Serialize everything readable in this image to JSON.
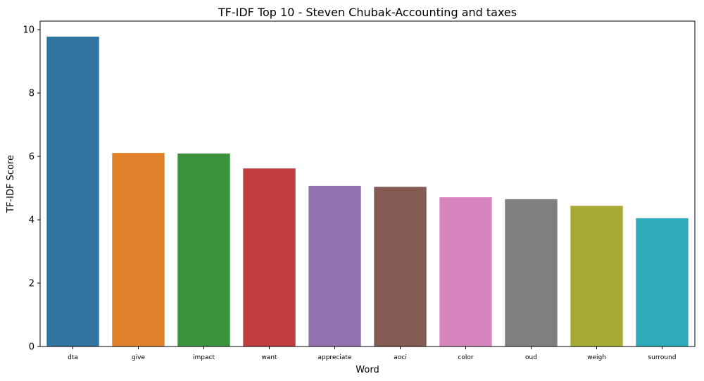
{
  "chart_data": {
    "type": "bar",
    "title": "TF-IDF Top 10 - Steven Chubak-Accounting and taxes",
    "xlabel": "Word",
    "ylabel": "TF-IDF Score",
    "categories": [
      "dta",
      "give",
      "impact",
      "want",
      "appreciate",
      "aoci",
      "color",
      "oud",
      "weigh",
      "surround"
    ],
    "values": [
      9.78,
      6.11,
      6.09,
      5.62,
      5.07,
      5.04,
      4.71,
      4.65,
      4.44,
      4.05
    ],
    "colors": [
      "#3274a1",
      "#e1812c",
      "#3a923a",
      "#c03d3e",
      "#9372b2",
      "#845b53",
      "#d684bd",
      "#7f7f7f",
      "#a9aa35",
      "#2eabb8"
    ],
    "ylim": [
      0,
      10.27
    ],
    "yticks": [
      0,
      2,
      4,
      6,
      8,
      10
    ],
    "grid": false,
    "legend": "none"
  }
}
